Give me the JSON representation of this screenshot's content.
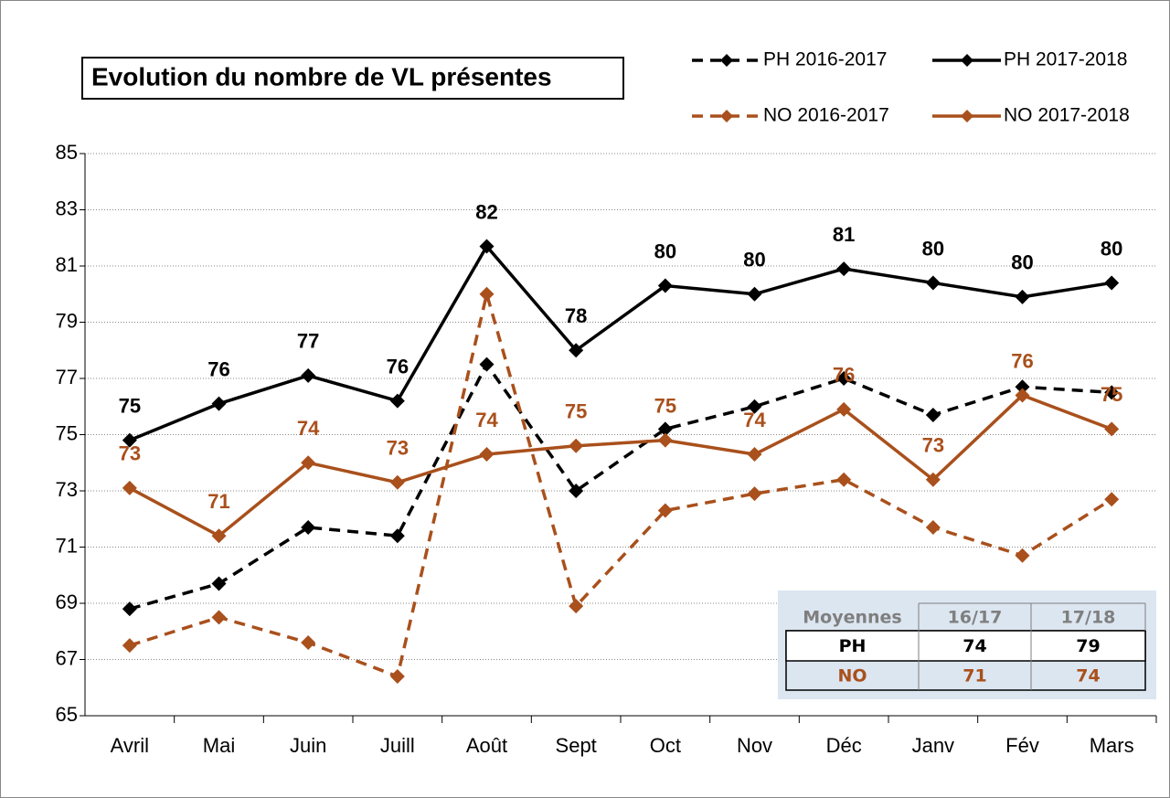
{
  "chart_data": {
    "type": "line",
    "title": "Evolution du nombre de VL présentes",
    "categories": [
      "Avril",
      "Mai",
      "Juin",
      "Juill",
      "Août",
      "Sept",
      "Oct",
      "Nov",
      "Déc",
      "Janv",
      "Fév",
      "Mars"
    ],
    "ylim": [
      65,
      85
    ],
    "yticks": [
      65,
      67,
      69,
      71,
      73,
      75,
      77,
      79,
      81,
      83,
      85
    ],
    "grid": true,
    "legend": "top-right",
    "series": [
      {
        "name": "PH 2016-2017",
        "color": "#000000",
        "dash": true,
        "values": [
          68.8,
          69.7,
          71.7,
          71.4,
          77.5,
          73.0,
          75.2,
          76.0,
          77.0,
          75.7,
          76.7,
          76.5
        ]
      },
      {
        "name": "PH 2017-2018",
        "color": "#000000",
        "dash": false,
        "values": [
          74.8,
          76.1,
          77.1,
          76.2,
          81.7,
          78.0,
          80.3,
          80.0,
          80.9,
          80.4,
          79.9,
          80.4
        ],
        "value_labels": [
          "75",
          "76",
          "77",
          "76",
          "82",
          "78",
          "80",
          "80",
          "81",
          "80",
          "80",
          "80"
        ]
      },
      {
        "name": "NO 2016-2017",
        "color": "#a9501c",
        "dash": true,
        "values": [
          67.5,
          68.5,
          67.6,
          66.4,
          80.0,
          68.9,
          72.3,
          72.9,
          73.4,
          71.7,
          70.7,
          72.7
        ]
      },
      {
        "name": "NO 2017-2018",
        "color": "#a9501c",
        "dash": false,
        "values": [
          73.1,
          71.4,
          74.0,
          73.3,
          74.3,
          74.6,
          74.8,
          74.3,
          75.9,
          73.4,
          76.4,
          75.2
        ],
        "value_labels": [
          "73",
          "71",
          "74",
          "73",
          "74",
          "75",
          "75",
          "74",
          "76",
          "73",
          "76",
          "75"
        ]
      }
    ],
    "table": {
      "header": [
        "Moyennes",
        "16/17",
        "17/18"
      ],
      "rows": [
        [
          "PH",
          74,
          79
        ],
        [
          "NO",
          71,
          74
        ]
      ]
    }
  }
}
